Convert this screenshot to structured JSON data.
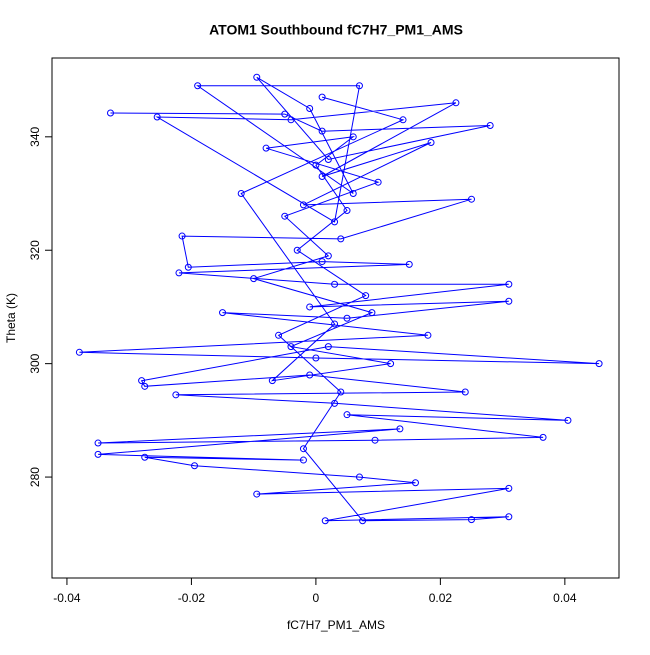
{
  "chart_data": {
    "type": "line",
    "title": "ATOM1 Southbound fC7H7_PM1_AMS",
    "x_label": "fC7H7_PM1_AMS",
    "y_label": "Theta (K)",
    "color": "#0000ff",
    "markers": true,
    "xlim": [
      -0.0424,
      0.0487
    ],
    "ylim": [
      262.2,
      353.9
    ],
    "xticks": [
      -0.04,
      -0.02,
      0,
      0.02,
      0.04
    ],
    "yticks": [
      280,
      300,
      320,
      340
    ],
    "x": [
      -0.033,
      -0.005,
      0.001,
      0.028,
      0.002,
      -0.0095,
      -0.001,
      0.006,
      -0.019,
      0.007,
      0.003,
      -0.0255,
      -0.004,
      0.0225,
      0.001,
      0.0185,
      -0.002,
      0.025,
      0.004,
      -0.0215,
      -0.0205,
      0.001,
      0.015,
      -0.022,
      0.003,
      0.031,
      -0.001,
      0.031,
      0.005,
      -0.015,
      0.018,
      -0.038,
      0,
      0.0455,
      0.002,
      -0.028,
      -0.0275,
      -0.001,
      0.024,
      -0.0225,
      0.003,
      0.0405,
      0.005,
      0.0365,
      0.0095,
      -0.035,
      0.0135,
      -0.035,
      -0.002,
      -0.0275,
      -0.0195,
      0.007,
      0.016,
      -0.0095,
      0.031,
      0.0015,
      0.031,
      0.025,
      0.0075,
      -0.002,
      0.004,
      -0.006,
      0.008,
      -0.003,
      0.005,
      0,
      0.006,
      -0.008,
      0.01,
      -0.005,
      0.002,
      -0.01,
      0.009,
      -0.004,
      0.012,
      -0.007,
      0.003,
      -0.012,
      0.014,
      0.001
    ],
    "values": [
      344.2,
      344,
      341,
      342,
      336,
      350.5,
      345,
      330,
      349,
      349,
      325,
      343.5,
      343,
      346,
      333,
      339,
      328,
      329,
      322,
      322.5,
      317,
      318,
      317.5,
      316,
      314,
      314,
      310,
      311,
      308,
      309,
      305,
      302,
      301,
      300,
      303,
      297,
      296,
      298,
      295,
      294.5,
      293,
      290,
      291,
      287,
      286.5,
      286,
      288.5,
      284,
      283,
      283.5,
      282,
      280,
      279,
      277,
      278,
      272.3,
      273,
      272.5,
      272.3,
      285,
      295,
      305,
      312,
      320,
      327,
      335,
      340,
      338,
      332,
      326,
      319,
      315,
      309,
      303,
      300,
      297,
      307,
      330,
      343,
      347
    ]
  }
}
